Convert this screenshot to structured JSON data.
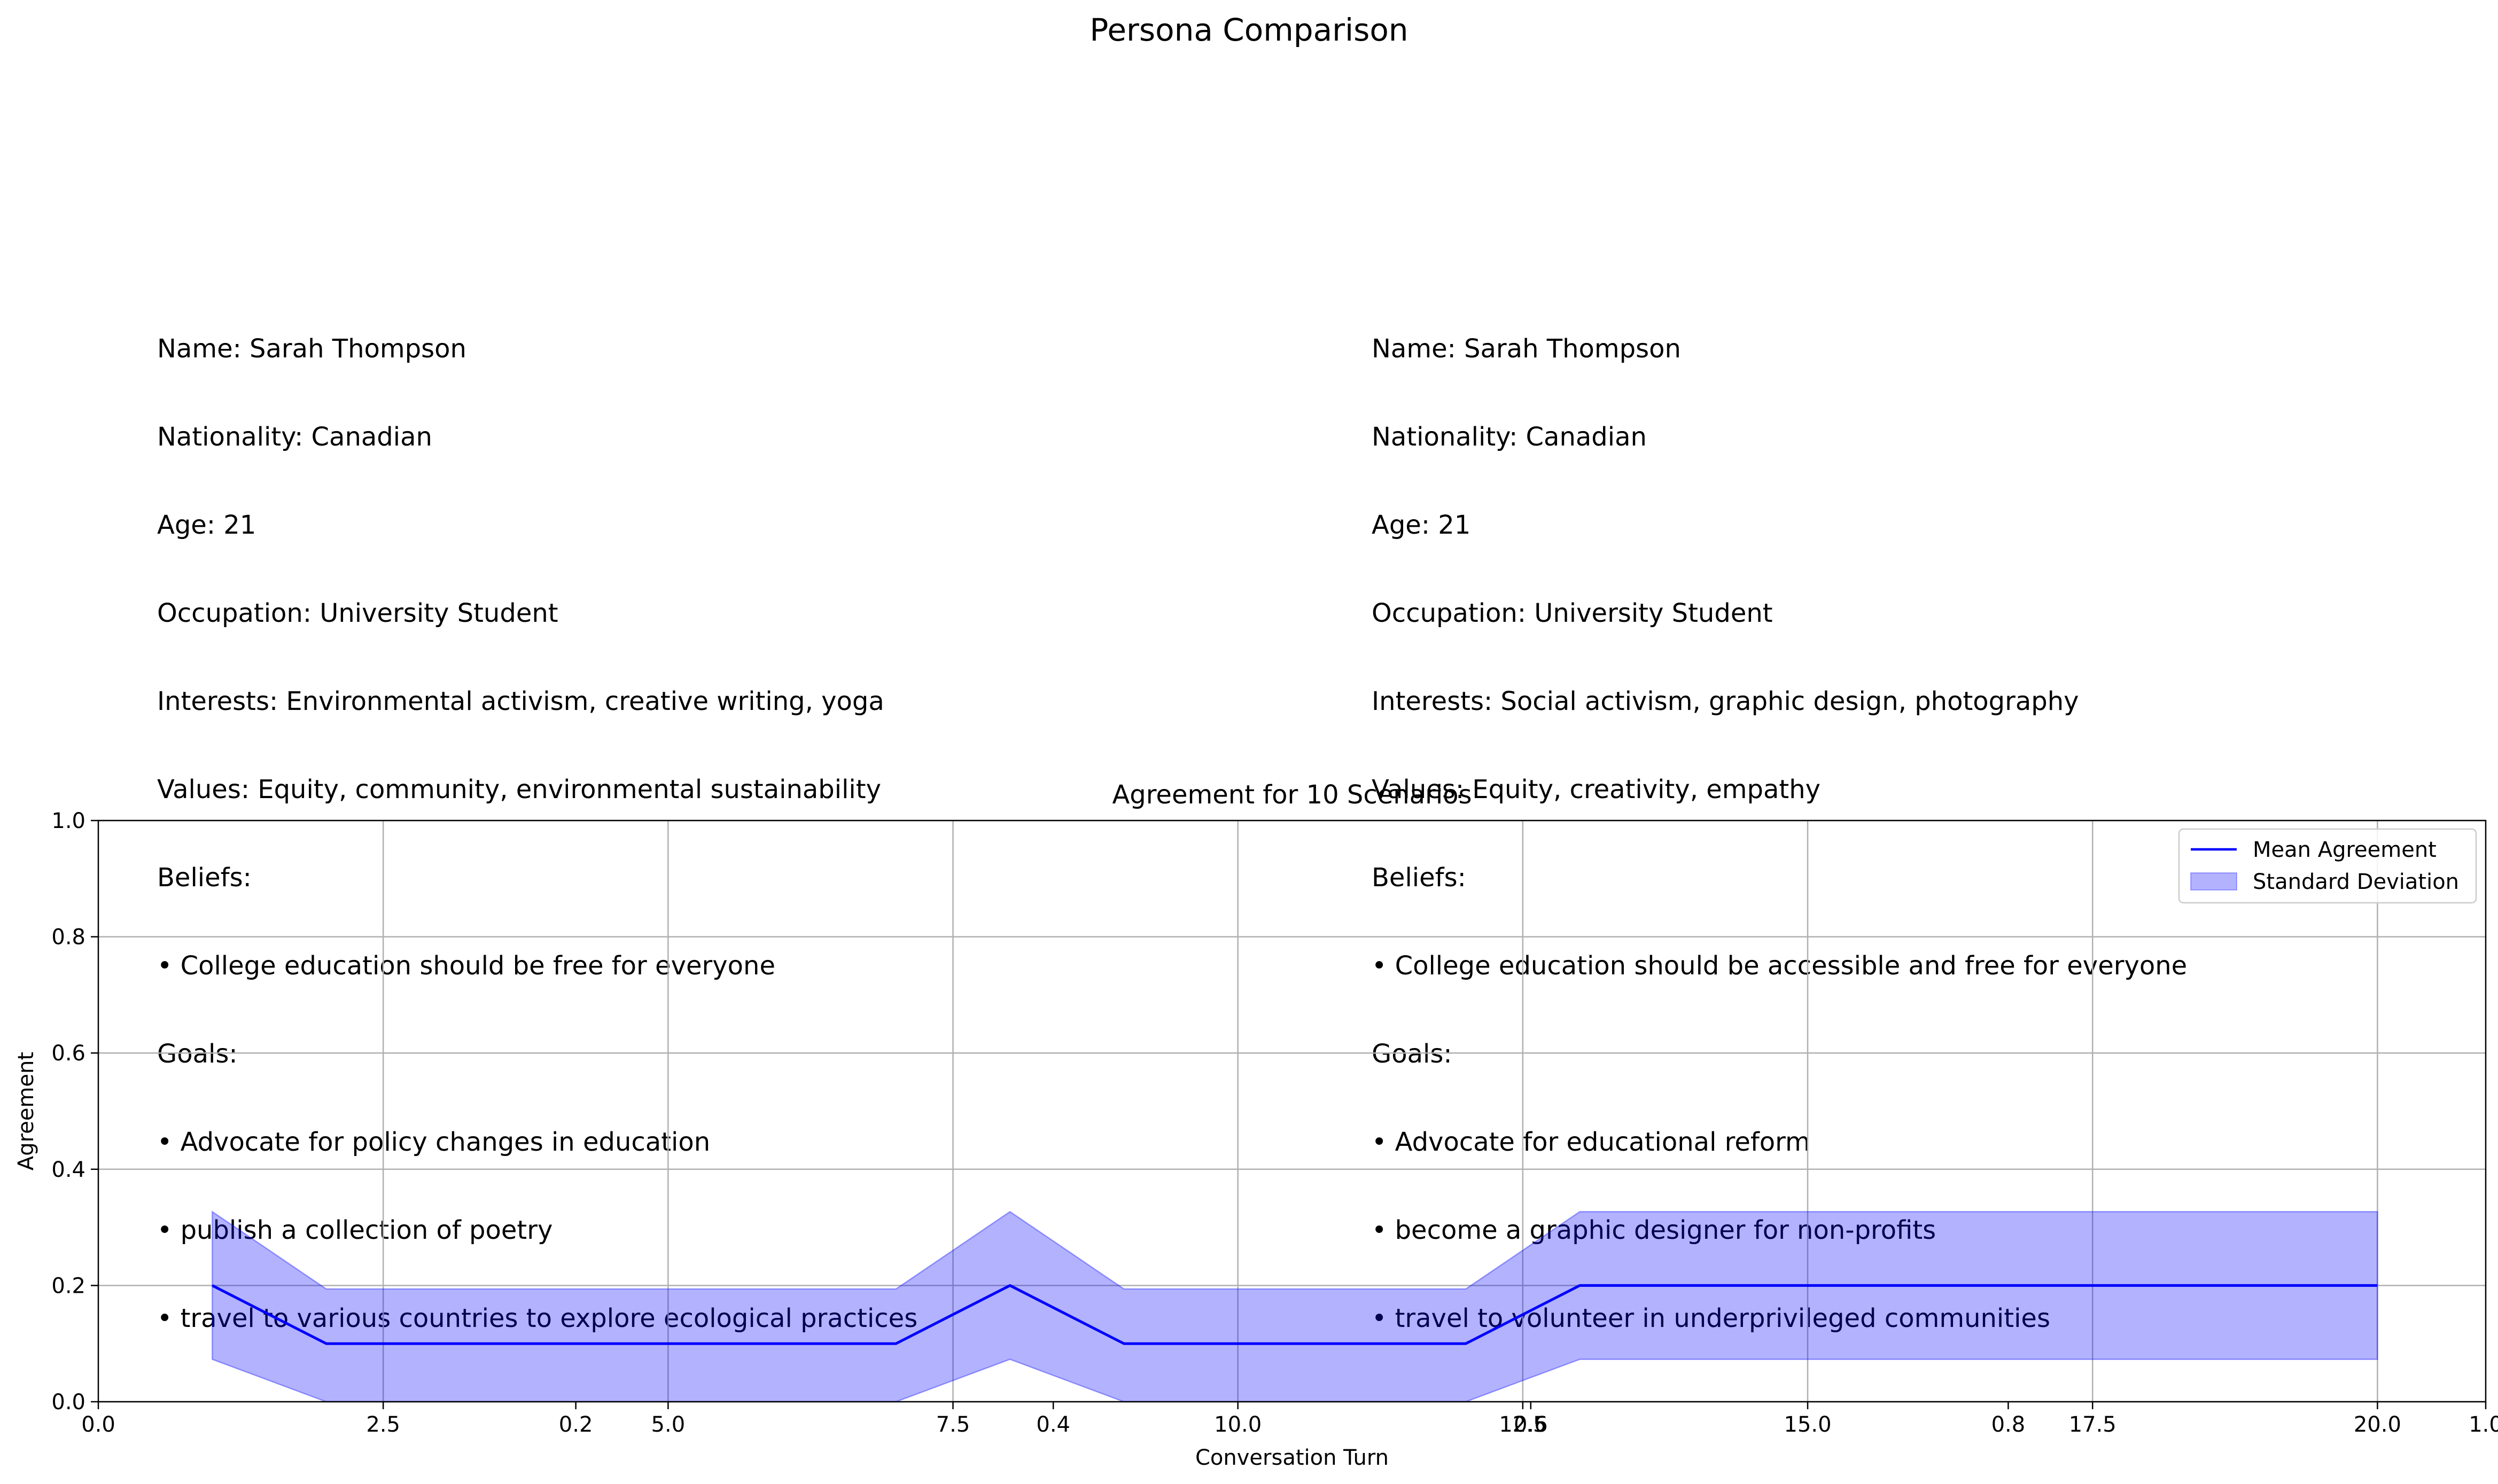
{
  "figure": {
    "title": "Persona Comparison"
  },
  "personas": [
    {
      "lines": [
        "Name: Sarah Thompson",
        "Nationality: Canadian",
        "Age: 21",
        "Occupation: University Student",
        "Interests: Environmental activism, creative writing, yoga",
        "Values: Equity, community, environmental sustainability",
        "Beliefs:",
        "• College education should be free for everyone",
        "Goals:",
        "• Advocate for policy changes in education",
        "• publish a collection of poetry",
        "• travel to various countries to explore ecological practices"
      ]
    },
    {
      "lines": [
        "Name: Sarah Thompson",
        "Nationality: Canadian",
        "Age: 21",
        "Occupation: University Student",
        "Interests: Social activism, graphic design, photography",
        "Values: Equity, creativity, empathy",
        "Beliefs:",
        "• College education should be accessible and free for everyone",
        "Goals:",
        "• Advocate for educational reform",
        "• become a graphic designer for non-profits",
        "• travel to volunteer in underprivileged communities"
      ]
    }
  ],
  "chart_data": {
    "type": "line",
    "title": "Agreement for 10 Scenarios",
    "xlabel": "Conversation Turn",
    "ylabel": "Agreement",
    "xlim": [
      0,
      20.95
    ],
    "ylim": [
      0,
      1
    ],
    "grid": true,
    "legend_position": "top-right",
    "x_ticks": [
      "0.0",
      "2.5",
      "5.0",
      "7.5",
      "10.0",
      "12.5",
      "15.0",
      "17.5",
      "20.0"
    ],
    "x_tick_values": [
      0,
      2.5,
      5,
      7.5,
      10,
      12.5,
      15,
      17.5,
      20
    ],
    "overlay_x_ticks": [
      "0.2",
      "0.4",
      "0.6",
      "0.8",
      "1.0"
    ],
    "y_ticks": [
      "0.0",
      "0.2",
      "0.4",
      "0.6",
      "0.8",
      "1.0"
    ],
    "y_tick_values": [
      0,
      0.2,
      0.4,
      0.6,
      0.8,
      1.0
    ],
    "x": [
      1,
      2,
      3,
      4,
      5,
      6,
      7,
      8,
      9,
      10,
      11,
      12,
      13,
      14,
      15,
      16,
      17,
      18,
      19,
      20
    ],
    "series": [
      {
        "name": "Mean Agreement",
        "color": "#0000ff",
        "values": [
          0.2,
          0.1,
          0.1,
          0.1,
          0.1,
          0.1,
          0.1,
          0.2,
          0.1,
          0.1,
          0.1,
          0.1,
          0.2,
          0.2,
          0.2,
          0.2,
          0.2,
          0.2,
          0.2,
          0.2
        ]
      },
      {
        "name": "Standard Deviation",
        "color": "#0000ff",
        "fill_opacity": 0.3,
        "lower": [
          0.073,
          0.0,
          0.0,
          0.0,
          0.0,
          0.0,
          0.0,
          0.073,
          0.0,
          0.0,
          0.0,
          0.0,
          0.073,
          0.073,
          0.073,
          0.073,
          0.073,
          0.073,
          0.073,
          0.073
        ],
        "upper": [
          0.327,
          0.194,
          0.194,
          0.194,
          0.194,
          0.194,
          0.194,
          0.327,
          0.194,
          0.194,
          0.194,
          0.194,
          0.327,
          0.327,
          0.327,
          0.327,
          0.327,
          0.327,
          0.327,
          0.327
        ]
      }
    ]
  }
}
